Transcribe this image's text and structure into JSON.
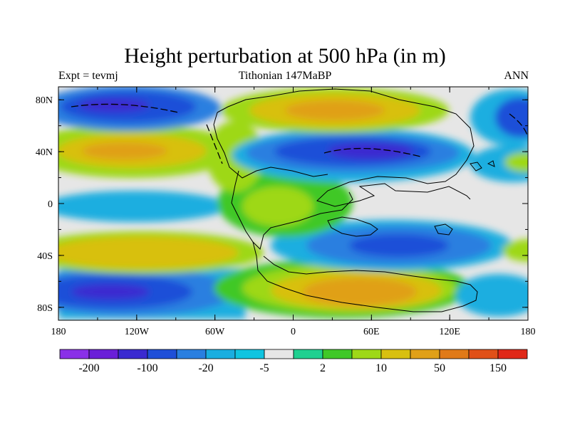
{
  "title": "Height perturbation at 500 hPa (in m)",
  "subtitle_left": "Expt = tevmj",
  "subtitle_center": "Tithonian 147MaBP",
  "subtitle_right": "ANN",
  "x_ticks": [
    "180",
    "120W",
    "60W",
    "0",
    "60E",
    "120E",
    "180"
  ],
  "y_ticks": [
    "80N",
    "40N",
    "0",
    "40S",
    "80S"
  ],
  "colorbar": {
    "colors": [
      "#8a30e8",
      "#6a1fd8",
      "#3a2ad0",
      "#1f4fd8",
      "#2a7fe0",
      "#1aaee0",
      "#10c4e0",
      "#e6e6e6",
      "#20d090",
      "#40c828",
      "#9ed818",
      "#d8c010",
      "#e0a018",
      "#e07a18",
      "#e05018",
      "#e02818"
    ],
    "labels": [
      {
        "text": "-200",
        "at_boundary": 1
      },
      {
        "text": "-100",
        "at_boundary": 3
      },
      {
        "text": "-20",
        "at_boundary": 5
      },
      {
        "text": "-5",
        "at_boundary": 7
      },
      {
        "text": "2",
        "at_boundary": 9
      },
      {
        "text": "10",
        "at_boundary": 11
      },
      {
        "text": "50",
        "at_boundary": 13
      },
      {
        "text": "150",
        "at_boundary": 15
      }
    ]
  },
  "field_colors": {
    "deep_negative": "#3a2ad0",
    "strong_negative": "#1f4fd8",
    "negative": "#2a7fe0",
    "weak_negative": "#1aaee0",
    "near_zero": "#e6e6e6",
    "weak_positive": "#40c828",
    "positive": "#9ed818",
    "strong_positive": "#d8c010",
    "very_strong_positive": "#e0a018"
  }
}
